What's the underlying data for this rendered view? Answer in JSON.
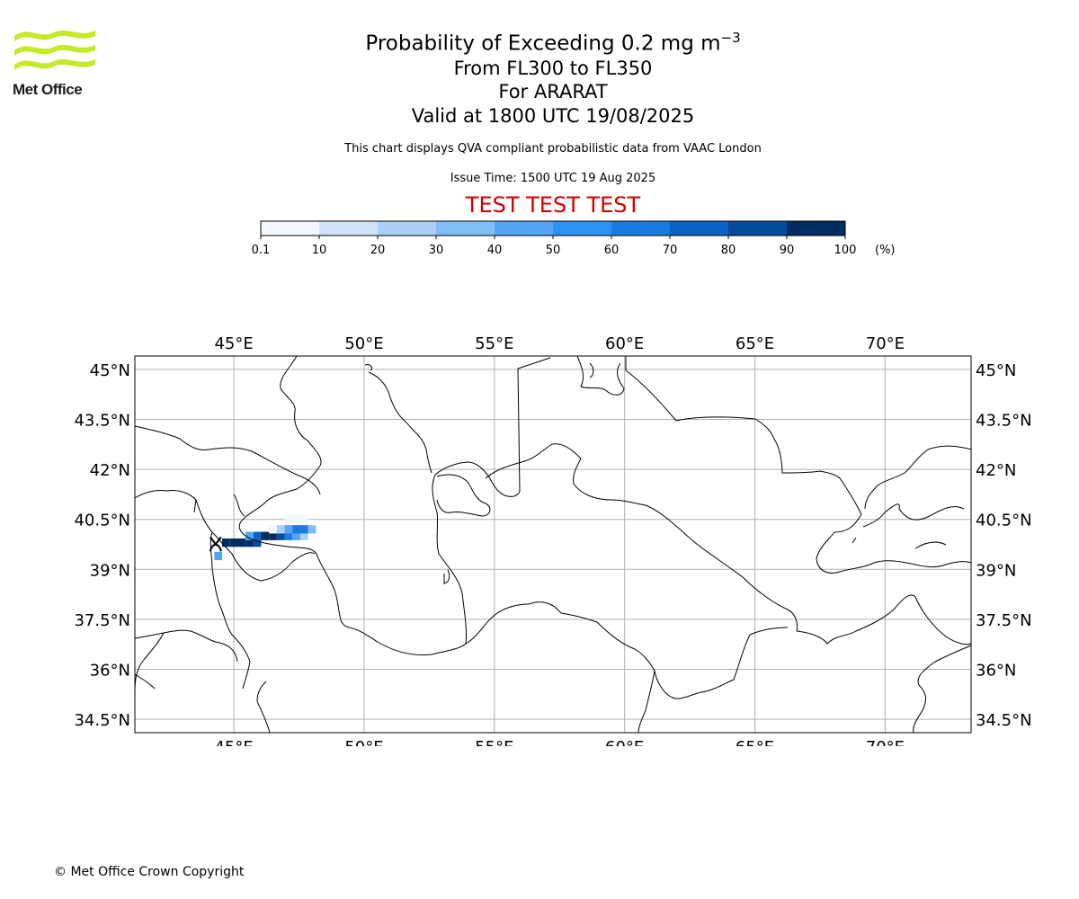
{
  "header": {
    "logo_text": "Met Office",
    "title_prefix": "Probability of Exceeding 0.2 mg m",
    "title_superscript": "−3",
    "level_range": "From FL300 to FL350",
    "volcano": "For ARARAT",
    "valid_time": "Valid at 1800 UTC 19/08/2025",
    "description": "This chart displays QVA compliant probabilistic data from VAAC London",
    "issue_time": "Issue Time: 1500 UTC 19 Aug 2025",
    "test_banner": "TEST TEST TEST"
  },
  "colorbar": {
    "ticks": [
      "0.1",
      "10",
      "20",
      "30",
      "40",
      "50",
      "60",
      "70",
      "80",
      "90",
      "100"
    ],
    "unit": "(%)",
    "colors": [
      "#f1f7fd",
      "#d0e2f6",
      "#acd0f5",
      "#80bdf6",
      "#52a6f5",
      "#2e93f0",
      "#1a7adf",
      "#0a62c6",
      "#054c9d",
      "#002c5f"
    ]
  },
  "map": {
    "lon_range": [
      41.2,
      73.3
    ],
    "lat_range": [
      34.1,
      45.4
    ],
    "lon_labels": [
      "45°E",
      "50°E",
      "55°E",
      "60°E",
      "65°E",
      "70°E"
    ],
    "lon_ticks": [
      45,
      50,
      55,
      60,
      65,
      70
    ],
    "lat_labels": [
      "45°N",
      "43.5°N",
      "42°N",
      "40.5°N",
      "39°N",
      "37.5°N",
      "36°N",
      "34.5°N"
    ],
    "lat_ticks": [
      45,
      43.5,
      42,
      40.5,
      39,
      37.5,
      36,
      34.5
    ],
    "volcano_marker": "Ararat",
    "plume_cells": [
      {
        "lon": 44.4,
        "lat": 39.4,
        "p": 45
      },
      {
        "lon": 44.7,
        "lat": 39.8,
        "p": 95
      },
      {
        "lon": 45.0,
        "lat": 39.8,
        "p": 95
      },
      {
        "lon": 45.3,
        "lat": 39.8,
        "p": 95
      },
      {
        "lon": 45.6,
        "lat": 39.8,
        "p": 95
      },
      {
        "lon": 45.9,
        "lat": 39.8,
        "p": 85
      },
      {
        "lon": 45.6,
        "lat": 40.0,
        "p": 45
      },
      {
        "lon": 45.9,
        "lat": 40.0,
        "p": 75
      },
      {
        "lon": 46.2,
        "lat": 40.0,
        "p": 95
      },
      {
        "lon": 46.5,
        "lat": 40.0,
        "p": 95
      },
      {
        "lon": 46.8,
        "lat": 40.0,
        "p": 85
      },
      {
        "lon": 47.1,
        "lat": 40.0,
        "p": 65
      },
      {
        "lon": 47.4,
        "lat": 40.0,
        "p": 45
      },
      {
        "lon": 47.7,
        "lat": 40.0,
        "p": 25
      },
      {
        "lon": 46.5,
        "lat": 40.2,
        "p": 5
      },
      {
        "lon": 46.8,
        "lat": 40.2,
        "p": 25
      },
      {
        "lon": 47.1,
        "lat": 40.2,
        "p": 45
      },
      {
        "lon": 47.4,
        "lat": 40.2,
        "p": 65
      },
      {
        "lon": 47.7,
        "lat": 40.2,
        "p": 65
      },
      {
        "lon": 48.0,
        "lat": 40.2,
        "p": 35
      },
      {
        "lon": 47.1,
        "lat": 40.5,
        "p": 5
      },
      {
        "lon": 47.4,
        "lat": 40.5,
        "p": 5
      },
      {
        "lon": 47.7,
        "lat": 40.5,
        "p": 5
      }
    ]
  },
  "footer": {
    "copyright": "© Met Office Crown Copyright"
  }
}
